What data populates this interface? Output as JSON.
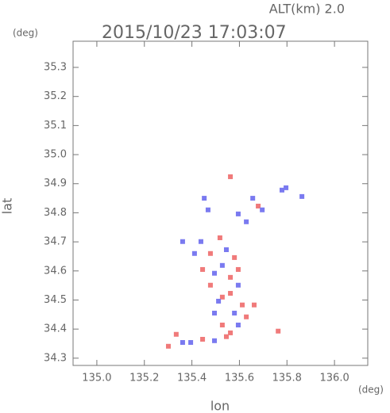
{
  "chart_data": {
    "type": "scatter",
    "title": "2015/10/23 17:03:07",
    "subtitle": "ALT(km) 2.0",
    "y_unit": "(deg)",
    "x_unit": "(deg)",
    "x_label": "lon",
    "y_label": "lat",
    "xlim": [
      134.9,
      136.14
    ],
    "ylim": [
      34.275,
      35.39
    ],
    "xticks": [
      {
        "value": 135.0,
        "label": "135.0"
      },
      135.2,
      135.4,
      135.6,
      135.8,
      {
        "value": 136.0,
        "label": "136.0"
      }
    ],
    "yticks": [
      34.3,
      34.4,
      34.5,
      34.6,
      34.7,
      34.8,
      34.9,
      {
        "value": 35.0,
        "label": "35.0"
      },
      35.1,
      35.2,
      35.3
    ],
    "x": [
      135.562,
      135.452,
      135.468,
      135.595,
      135.656,
      135.679,
      135.696,
      135.779,
      135.796,
      135.863,
      135.629,
      135.518,
      135.438,
      135.411,
      135.478,
      135.545,
      135.579,
      135.528,
      135.595,
      135.495,
      135.445,
      135.562,
      135.478,
      135.595,
      135.528,
      135.562,
      135.512,
      135.612,
      135.579,
      135.495,
      135.629,
      135.528,
      135.595,
      135.562,
      135.545,
      135.495,
      135.445,
      135.395,
      135.361,
      135.334,
      135.301,
      135.662,
      135.763,
      135.361
    ],
    "values": [
      34.924,
      34.85,
      34.81,
      34.796,
      34.85,
      34.823,
      34.81,
      34.878,
      34.886,
      34.856,
      34.769,
      34.714,
      34.701,
      34.66,
      34.66,
      34.673,
      34.646,
      34.619,
      34.605,
      34.592,
      34.605,
      34.578,
      34.551,
      34.551,
      34.51,
      34.523,
      34.496,
      34.483,
      34.455,
      34.455,
      34.442,
      34.414,
      34.414,
      34.387,
      34.374,
      34.36,
      34.365,
      34.354,
      34.354,
      34.382,
      34.341,
      34.483,
      34.393,
      34.701
    ],
    "colors": [
      "#f07a7a",
      "#7a7af0",
      "#7a7af0",
      "#7a7af0",
      "#7a7af0",
      "#f07a7a",
      "#7a7af0",
      "#7a7af0",
      "#7a7af0",
      "#7a7af0",
      "#7a7af0",
      "#f07a7a",
      "#7a7af0",
      "#7a7af0",
      "#f07a7a",
      "#7a7af0",
      "#f07a7a",
      "#7a7af0",
      "#f07a7a",
      "#7a7af0",
      "#f07a7a",
      "#f07a7a",
      "#f07a7a",
      "#7a7af0",
      "#f07a7a",
      "#f07a7a",
      "#7a7af0",
      "#f07a7a",
      "#7a7af0",
      "#7a7af0",
      "#f07a7a",
      "#f07a7a",
      "#7a7af0",
      "#f07a7a",
      "#f07a7a",
      "#7a7af0",
      "#f07a7a",
      "#7a7af0",
      "#7a7af0",
      "#f07a7a",
      "#f07a7a",
      "#f07a7a",
      "#f07a7a",
      "#7a7af0"
    ]
  }
}
